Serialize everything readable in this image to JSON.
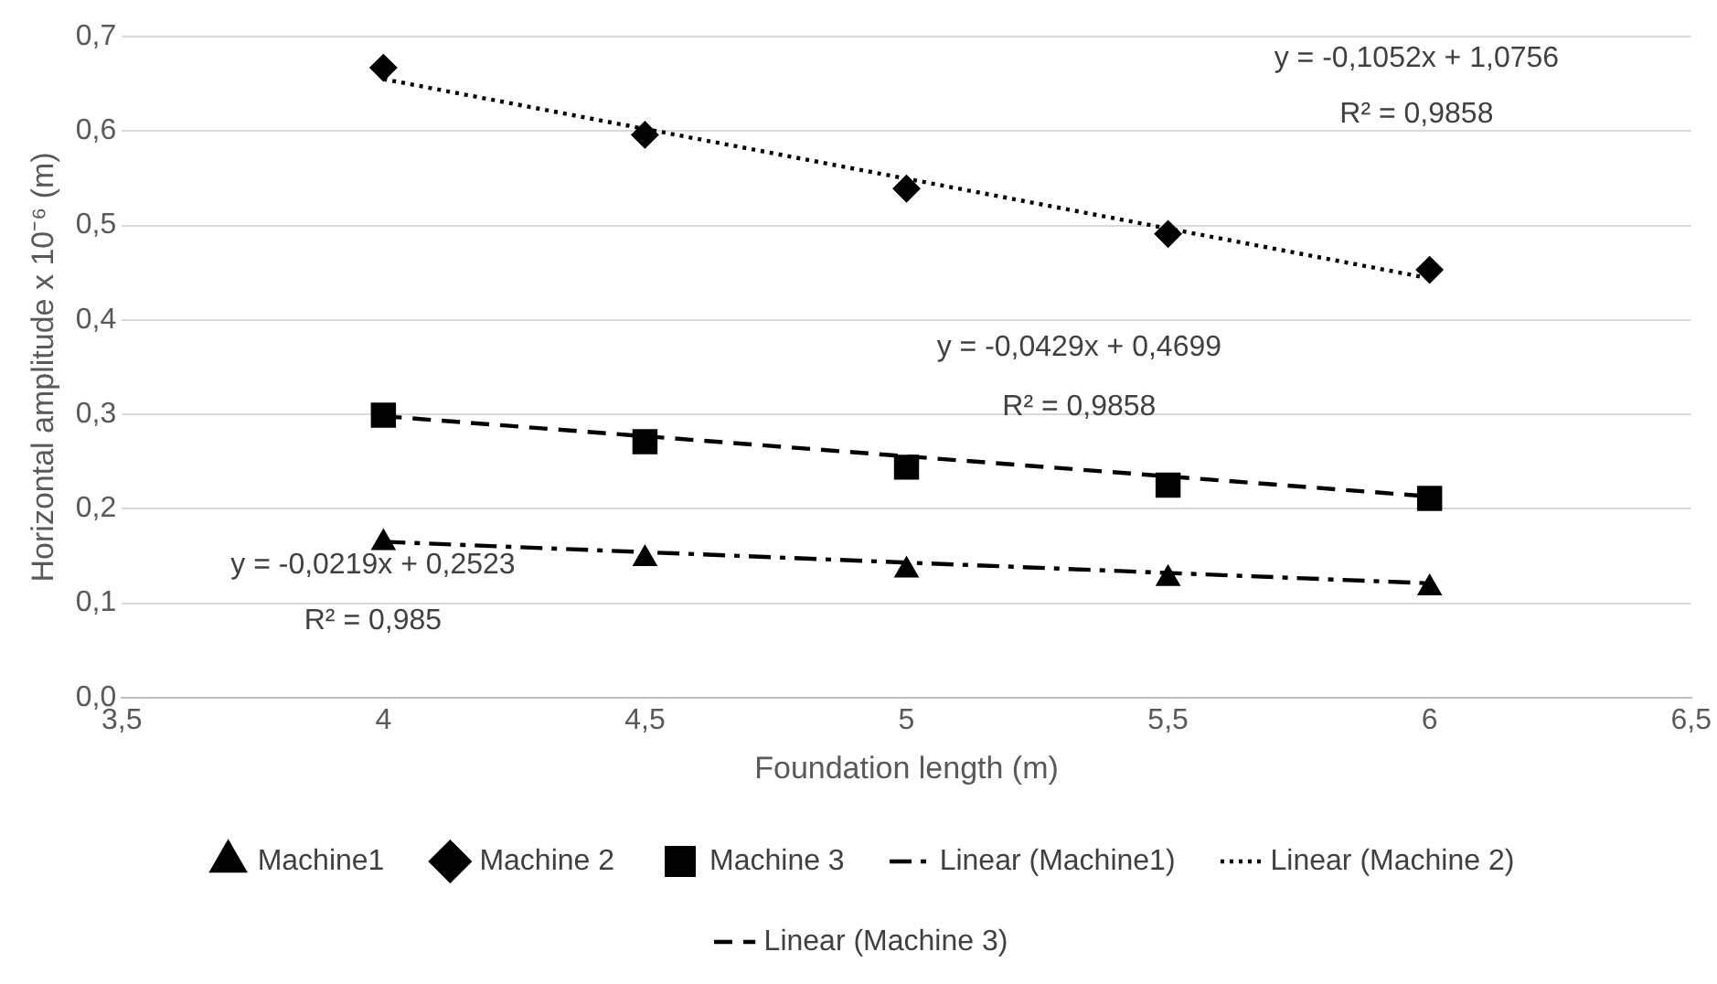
{
  "chart_data": {
    "type": "scatter",
    "xlabel": "Foundation length (m)",
    "ylabel": "Horizontal amplitude x 10⁻⁶ (m)",
    "x": [
      4,
      4.5,
      5,
      5.5,
      6
    ],
    "series": [
      {
        "name": "Machine1",
        "color": "#000000",
        "marker": "triangle",
        "values": [
          0.164,
          0.147,
          0.135,
          0.126,
          0.116
        ]
      },
      {
        "name": "Machine 2",
        "color": "#000000",
        "marker": "diamond",
        "values": [
          0.667,
          0.596,
          0.539,
          0.491,
          0.453
        ]
      },
      {
        "name": "Machine 3",
        "color": "#000000",
        "marker": "square",
        "values": [
          0.299,
          0.271,
          0.244,
          0.225,
          0.211
        ]
      },
      {
        "name": "Linear (Machine1)",
        "type": "line",
        "color": "#000000",
        "line_style": "dashdot",
        "values": [
          0.165,
          null,
          null,
          null,
          0.121
        ]
      },
      {
        "name": "Linear (Machine 2)",
        "type": "line",
        "color": "#000000",
        "line_style": "dotted",
        "values": [
          0.655,
          null,
          null,
          null,
          0.444
        ]
      },
      {
        "name": "Linear (Machine 3)",
        "type": "line",
        "color": "#000000",
        "line_style": "dashed",
        "values": [
          0.298,
          null,
          null,
          null,
          0.213
        ]
      }
    ],
    "xlim": [
      3.5,
      6.5
    ],
    "xticks": [
      {
        "value": 3.5,
        "label": "3,5"
      },
      4,
      {
        "value": 4.5,
        "label": "4,5"
      },
      5,
      {
        "value": 5.5,
        "label": "5,5"
      },
      6,
      {
        "value": 6.5,
        "label": "6,5"
      }
    ],
    "ylim": [
      0,
      0.7
    ],
    "yticks": [
      {
        "value": 0,
        "label": "0,0"
      },
      {
        "value": 0.1,
        "label": "0,1"
      },
      {
        "value": 0.2,
        "label": "0,2"
      },
      {
        "value": 0.3,
        "label": "0,3"
      },
      {
        "value": 0.4,
        "label": "0,4"
      },
      {
        "value": 0.5,
        "label": "0,5"
      },
      {
        "value": 0.6,
        "label": "0,6"
      },
      {
        "value": 0.7,
        "label": "0,7"
      }
    ],
    "grid": "y",
    "legend": "bottom",
    "annotations": [
      "y = -0,1052x + 1,0756",
      "R² = 0,9858",
      "y = -0,0429x + 0,4699",
      "R² = 0,9858",
      "y = -0,0219x + 0,2523",
      "R² = 0,985"
    ]
  }
}
